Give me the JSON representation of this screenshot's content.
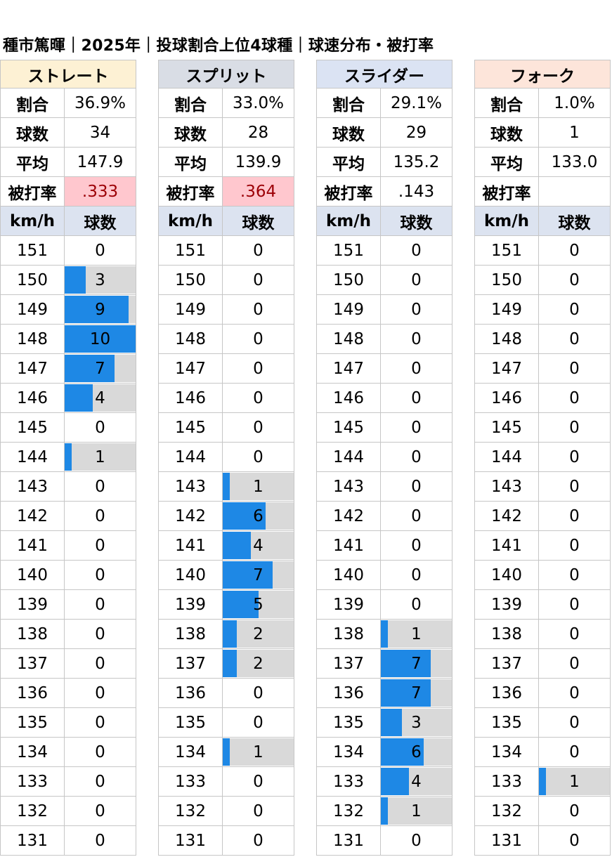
{
  "title": "種市篤暉｜2025年｜投球割合上位4球種｜球速分布・被打率",
  "labels": {
    "ratio": "割合",
    "count": "球数",
    "avg": "平均",
    "babip": "被打率",
    "speed_col": "km/h",
    "count_col": "球数"
  },
  "colors": {
    "bar": "#1e88e5",
    "bar_track": "#d9d9d9",
    "highlight_bg": "#ffc7ce",
    "highlight_text": "#9c0006",
    "col_header_bg": "#dce3f0"
  },
  "panels": [
    {
      "name": "ストレート",
      "header_color": "#fdf1d4",
      "ratio": "36.9%",
      "count": "34",
      "avg": "147.9",
      "babip": ".333",
      "babip_highlight": true
    },
    {
      "name": "スプリット",
      "header_color": "#d9dde5",
      "ratio": "33.0%",
      "count": "28",
      "avg": "139.9",
      "babip": ".364",
      "babip_highlight": true
    },
    {
      "name": "スライダー",
      "header_color": "#dbe3f3",
      "ratio": "29.1%",
      "count": "29",
      "avg": "135.2",
      "babip": ".143",
      "babip_highlight": false
    },
    {
      "name": "フォーク",
      "header_color": "#fde5da",
      "ratio": "1.0%",
      "count": "1",
      "avg": "133.0",
      "babip": "",
      "babip_highlight": false
    }
  ],
  "chart_data": {
    "type": "bar",
    "title": "種市篤暉｜2025年｜投球割合上位4球種｜球速分布・被打率",
    "categories": [
      "151",
      "150",
      "149",
      "148",
      "147",
      "146",
      "145",
      "144",
      "143",
      "142",
      "141",
      "140",
      "139",
      "138",
      "137",
      "136",
      "135",
      "134",
      "133",
      "132",
      "131"
    ],
    "series": [
      {
        "name": "ストレート",
        "values": [
          0,
          3,
          9,
          10,
          7,
          4,
          0,
          1,
          0,
          0,
          0,
          0,
          0,
          0,
          0,
          0,
          0,
          0,
          0,
          0,
          0
        ]
      },
      {
        "name": "スプリット",
        "values": [
          0,
          0,
          0,
          0,
          0,
          0,
          0,
          0,
          1,
          6,
          4,
          7,
          5,
          2,
          2,
          0,
          0,
          1,
          0,
          0,
          0
        ]
      },
      {
        "name": "スライダー",
        "values": [
          0,
          0,
          0,
          0,
          0,
          0,
          0,
          0,
          0,
          0,
          0,
          0,
          0,
          1,
          7,
          7,
          3,
          6,
          4,
          1,
          0
        ]
      },
      {
        "name": "フォーク",
        "values": [
          0,
          0,
          0,
          0,
          0,
          0,
          0,
          0,
          0,
          0,
          0,
          0,
          0,
          0,
          0,
          0,
          0,
          0,
          1,
          0,
          0
        ]
      }
    ],
    "bar_max": 10
  }
}
